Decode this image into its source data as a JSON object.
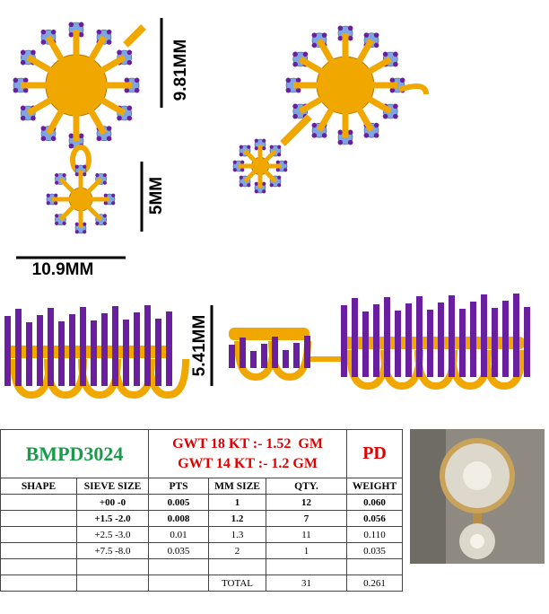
{
  "dimensions": {
    "top_height": "9.81MM",
    "drop_height": "5MM",
    "width": "10.9MM",
    "side_height": "5.41MM"
  },
  "table": {
    "code": "BMPD3024",
    "gwt": [
      "GWT 18 KT :- 1.52  GM",
      "GWT 14 KT :- 1.2 GM"
    ],
    "metal": "PD",
    "headers": [
      "SHAPE",
      "SIEVE SIZE",
      "PTS",
      "MM SIZE",
      "QTY.",
      "WEIGHT"
    ],
    "rows": [
      [
        "+00 -0",
        "0.005",
        "1",
        "12",
        "0.060"
      ],
      [
        "+1.5 -2.0",
        "0.008",
        "1.2",
        "7",
        "0.056"
      ],
      [
        "+2.5 -3.0",
        "0.01",
        "1.3",
        "11",
        "0.110"
      ],
      [
        "+7.5 -8.0",
        "0.035",
        "2",
        "1",
        "0.035"
      ]
    ],
    "total": {
      "label": "TOTAL",
      "qty": "31",
      "weight": "0.261"
    }
  }
}
